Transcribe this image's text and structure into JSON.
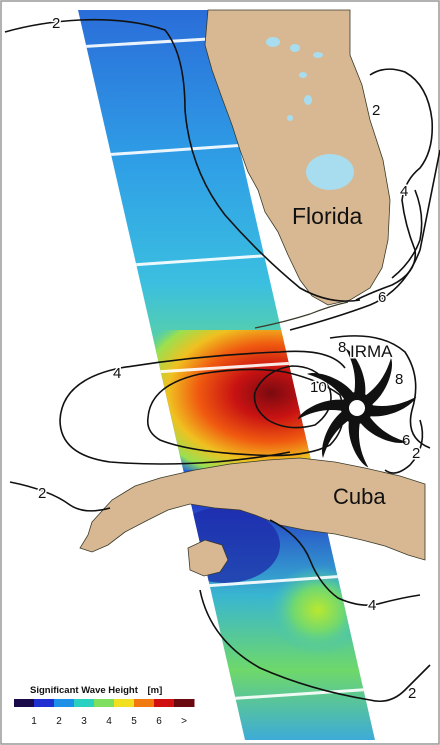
{
  "places": {
    "florida": "Florida",
    "cuba": "Cuba",
    "storm": "IRMA"
  },
  "contour_labels": [
    "2",
    "2",
    "2",
    "4",
    "6",
    "4",
    "8",
    "10",
    "8",
    "6",
    "2",
    "4",
    "2"
  ],
  "legend": {
    "title": "Significant Wave Height",
    "unit": "[m]",
    "ticks": [
      "1",
      "2",
      "3",
      "4",
      "5",
      "6",
      ">"
    ],
    "colors": [
      "#1a0a4a",
      "#1f2fd0",
      "#1e90e8",
      "#2ad0c0",
      "#7fe060",
      "#f0e020",
      "#f07a10",
      "#d01010",
      "#6a0a10"
    ]
  },
  "colors": {
    "land": "#d8b892",
    "lake": "#a8dcef",
    "contour": "#111111",
    "storm": "#111111"
  }
}
